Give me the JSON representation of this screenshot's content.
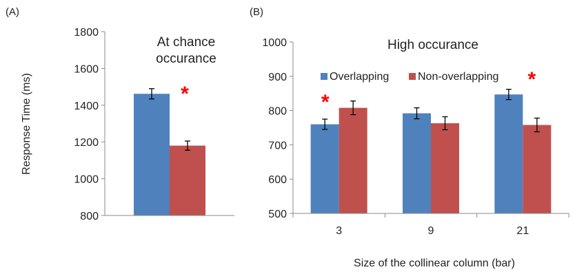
{
  "colors": {
    "overlapping": "#4f81bd",
    "non_overlapping": "#c0504d",
    "error_bar": "#000000",
    "asterisk": "#ff0000",
    "axis": "#888888",
    "text": "#222222"
  },
  "chart_data": [
    {
      "type": "bar",
      "panel_label": "(A)",
      "title": "At chance\noccurance",
      "ylabel": "Response Time (ms)",
      "xlabel": "",
      "ylim": [
        800,
        1800
      ],
      "yticks": [
        800,
        1000,
        1200,
        1400,
        1600,
        1800
      ],
      "categories": [
        ""
      ],
      "series": [
        {
          "values": [
            1462
          ],
          "errors": [
            28
          ],
          "color": "#4f81bd"
        },
        {
          "values": [
            1180
          ],
          "errors": [
            25
          ],
          "color": "#c0504d"
        }
      ],
      "significance": [
        {
          "category_index": 0,
          "label": "*"
        }
      ],
      "grid": false,
      "legend": "none"
    },
    {
      "type": "bar",
      "panel_label": "(B)",
      "title": "High occurance",
      "ylabel": "",
      "xlabel": "Size of the collinear column (bar)",
      "ylim": [
        500,
        1000
      ],
      "yticks": [
        500,
        600,
        700,
        800,
        900,
        1000
      ],
      "categories": [
        "3",
        "9",
        "21"
      ],
      "series": [
        {
          "name": "Overlapping",
          "values": [
            760,
            792,
            847
          ],
          "errors": [
            15,
            16,
            15
          ],
          "color": "#4f81bd"
        },
        {
          "name": "Non-overlapping",
          "values": [
            808,
            763,
            758
          ],
          "errors": [
            20,
            19,
            20
          ],
          "color": "#c0504d"
        }
      ],
      "significance": [
        {
          "category_index": 0,
          "label": "*"
        },
        {
          "category_index": 2,
          "label": "*"
        }
      ],
      "grid": false,
      "legend": "top-left"
    }
  ]
}
